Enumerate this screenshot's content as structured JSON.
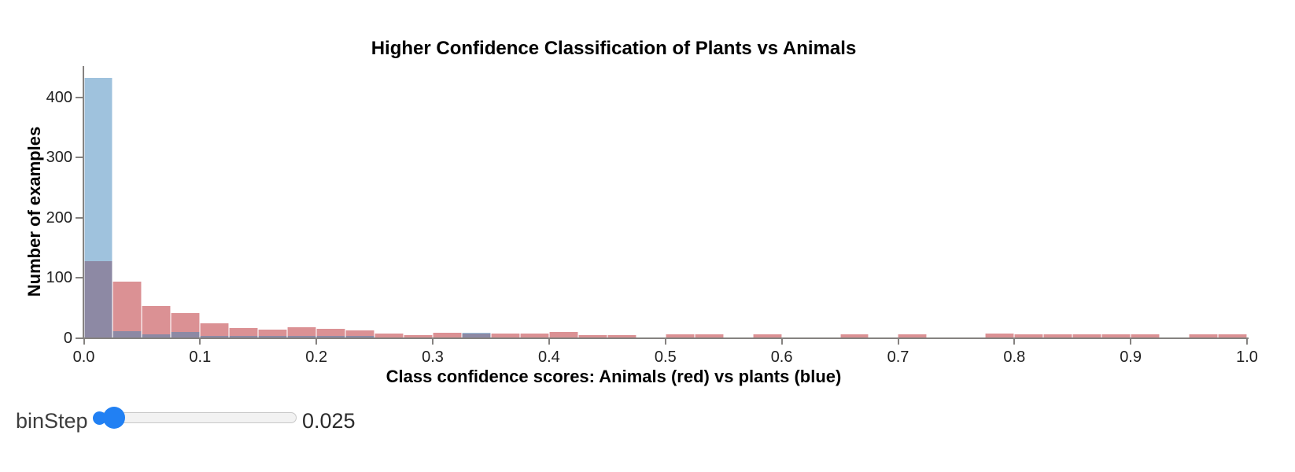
{
  "title": "Higher Confidence Classification of Plants vs Animals",
  "chart_data": {
    "type": "bar",
    "subtype": "layered-histogram",
    "title": "Higher Confidence Classification of Plants vs Animals",
    "xlabel": "Class confidence scores: Animals (red) vs plants (blue)",
    "ylabel": "Number of examples",
    "xlim": [
      0.0,
      1.0
    ],
    "ylim": [
      0,
      450
    ],
    "grid": false,
    "legend": "none",
    "bin_step": 0.025,
    "bin_starts": [
      0.0,
      0.025,
      0.05,
      0.075,
      0.1,
      0.125,
      0.15,
      0.175,
      0.2,
      0.225,
      0.25,
      0.275,
      0.3,
      0.325,
      0.35,
      0.375,
      0.4,
      0.425,
      0.45,
      0.475,
      0.5,
      0.525,
      0.55,
      0.575,
      0.6,
      0.625,
      0.65,
      0.675,
      0.7,
      0.725,
      0.75,
      0.775,
      0.8,
      0.825,
      0.85,
      0.875,
      0.9,
      0.925,
      0.95,
      0.975
    ],
    "series": [
      {
        "name": "Animals",
        "color": "#db9194",
        "values": [
          127,
          93,
          52,
          41,
          24,
          16,
          13,
          17,
          15,
          12,
          7,
          4,
          8,
          7,
          7,
          7,
          9,
          4,
          4,
          0,
          5,
          5,
          0,
          5,
          0,
          0,
          5,
          0,
          5,
          0,
          0,
          7,
          5,
          5,
          5,
          5,
          5,
          0,
          5,
          5
        ]
      },
      {
        "name": "Plants",
        "color": "#9fc2dd",
        "values": [
          432,
          11,
          5,
          9,
          2,
          3,
          3,
          3,
          2,
          2,
          0,
          0,
          0,
          8,
          0,
          0,
          0,
          0,
          0,
          0,
          0,
          0,
          0,
          0,
          0,
          0,
          0,
          0,
          0,
          0,
          0,
          0,
          0,
          0,
          0,
          0,
          0,
          0,
          0,
          0
        ]
      }
    ],
    "overlap_color": "#8d89a4",
    "x_tick_labels": [
      "0.0",
      "0.1",
      "0.2",
      "0.3",
      "0.4",
      "0.5",
      "0.6",
      "0.7",
      "0.8",
      "0.9",
      "1.0"
    ],
    "y_tick_labels": [
      "0",
      "100",
      "200",
      "300",
      "400"
    ],
    "y_tick_values": [
      0,
      100,
      200,
      300,
      400
    ],
    "axis_color": "#858280"
  },
  "controls": {
    "bin_step_label": "binStep",
    "bin_step_value": "0.025",
    "thumb_color": "#2180f3"
  }
}
